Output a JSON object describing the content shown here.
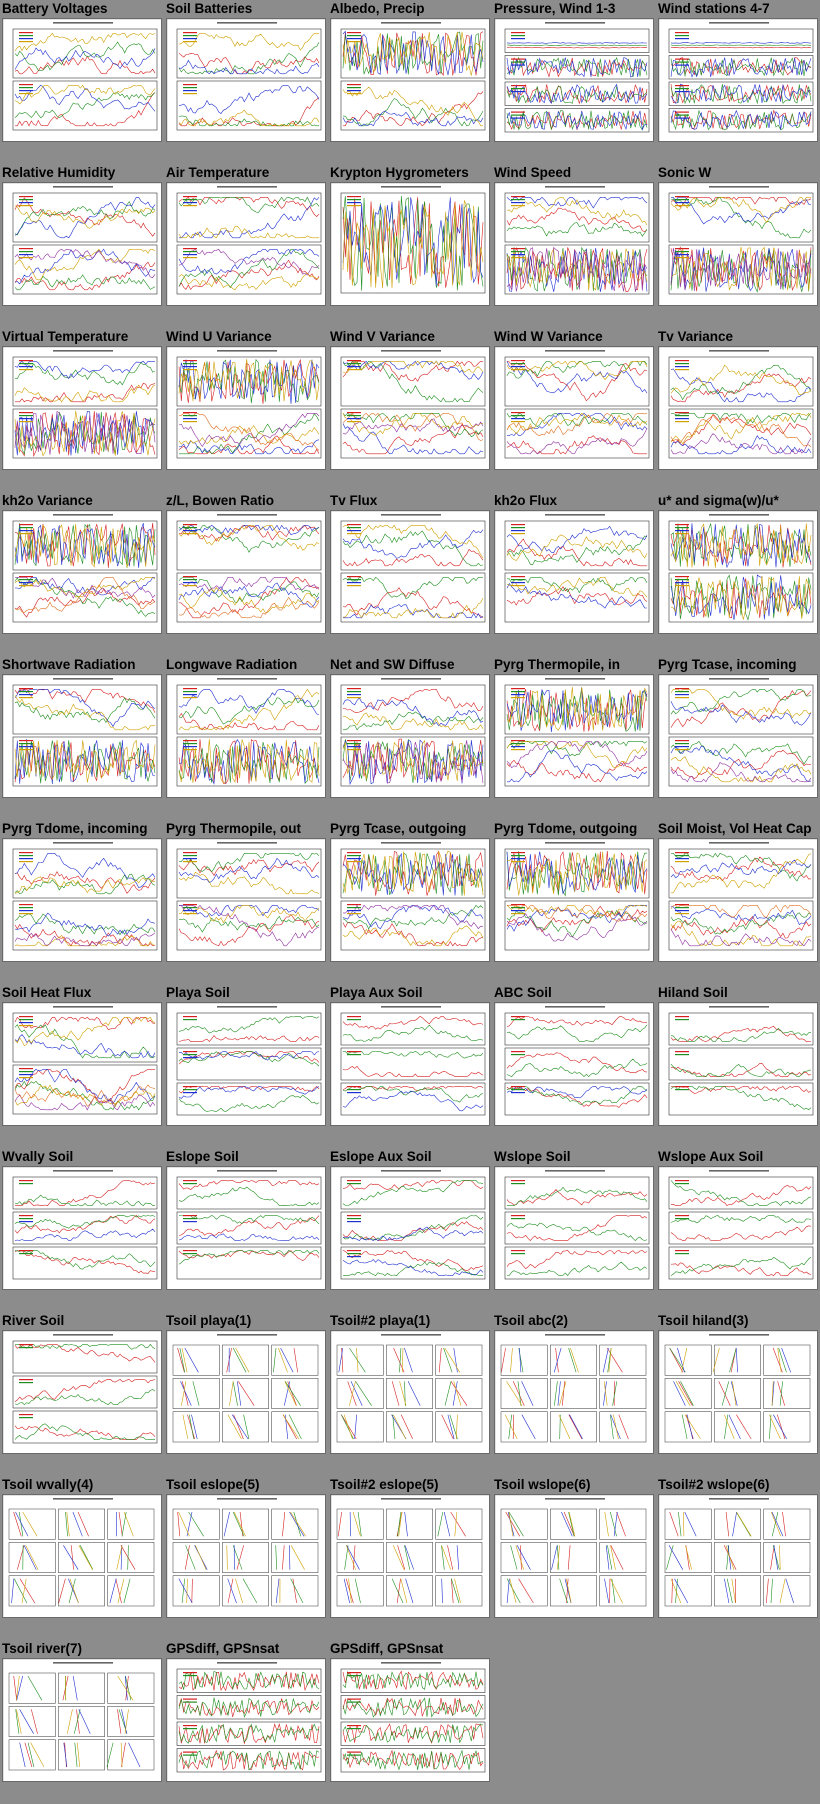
{
  "page": {
    "background": "#8c8c8c"
  },
  "plots": [
    {
      "title": "Battery Voltages",
      "kind": "ts2"
    },
    {
      "title": "Soil Batteries",
      "kind": "ts2"
    },
    {
      "title": "Albedo, Precip",
      "kind": "ts2"
    },
    {
      "title": "Pressure, Wind 1-3",
      "kind": "ts4"
    },
    {
      "title": "Wind stations 4-7",
      "kind": "ts4"
    },
    {
      "title": "Relative Humidity",
      "kind": "ts2"
    },
    {
      "title": "Air Temperature",
      "kind": "ts2"
    },
    {
      "title": "Krypton Hygrometers",
      "kind": "ts1"
    },
    {
      "title": "Wind Speed",
      "kind": "ts2"
    },
    {
      "title": "Sonic W",
      "kind": "ts2"
    },
    {
      "title": "Virtual Temperature",
      "kind": "ts2"
    },
    {
      "title": "Wind U Variance",
      "kind": "ts2"
    },
    {
      "title": "Wind V Variance",
      "kind": "ts2"
    },
    {
      "title": "Wind W Variance",
      "kind": "ts2"
    },
    {
      "title": "Tv Variance",
      "kind": "ts2"
    },
    {
      "title": "kh2o Variance",
      "kind": "ts2"
    },
    {
      "title": "z/L, Bowen Ratio",
      "kind": "ts2"
    },
    {
      "title": "Tv Flux",
      "kind": "ts2"
    },
    {
      "title": "kh2o Flux",
      "kind": "ts2"
    },
    {
      "title": "u* and sigma(w)/u*",
      "kind": "ts2"
    },
    {
      "title": "Shortwave Radiation",
      "kind": "ts2"
    },
    {
      "title": "Longwave Radiation",
      "kind": "ts2"
    },
    {
      "title": "Net and SW Diffuse",
      "kind": "ts2"
    },
    {
      "title": "Pyrg Thermopile, in",
      "kind": "ts2"
    },
    {
      "title": "Pyrg Tcase, incoming",
      "kind": "ts2"
    },
    {
      "title": "Pyrg Tdome, incoming",
      "kind": "ts2"
    },
    {
      "title": "Pyrg Thermopile, out",
      "kind": "ts2"
    },
    {
      "title": "Pyrg Tcase, outgoing",
      "kind": "ts2"
    },
    {
      "title": "Pyrg Tdome, outgoing",
      "kind": "ts2"
    },
    {
      "title": "Soil Moist, Vol Heat Cap",
      "kind": "ts2"
    },
    {
      "title": "Soil Heat Flux",
      "kind": "ts2"
    },
    {
      "title": "Playa Soil",
      "kind": "ts3"
    },
    {
      "title": "Playa Aux Soil",
      "kind": "ts3"
    },
    {
      "title": "ABC Soil",
      "kind": "ts3"
    },
    {
      "title": "Hiland Soil",
      "kind": "ts3"
    },
    {
      "title": "Wvally Soil",
      "kind": "ts3"
    },
    {
      "title": "Eslope Soil",
      "kind": "ts3"
    },
    {
      "title": "Eslope Aux Soil",
      "kind": "ts3"
    },
    {
      "title": "Wslope Soil",
      "kind": "ts3"
    },
    {
      "title": "Wslope Aux Soil",
      "kind": "ts3"
    },
    {
      "title": "River Soil",
      "kind": "ts3"
    },
    {
      "title": "Tsoil playa(1)",
      "kind": "prof"
    },
    {
      "title": "Tsoil#2 playa(1)",
      "kind": "prof"
    },
    {
      "title": "Tsoil abc(2)",
      "kind": "prof"
    },
    {
      "title": "Tsoil hiland(3)",
      "kind": "prof"
    },
    {
      "title": "Tsoil wvally(4)",
      "kind": "prof"
    },
    {
      "title": "Tsoil eslope(5)",
      "kind": "prof"
    },
    {
      "title": "Tsoil#2 eslope(5)",
      "kind": "prof"
    },
    {
      "title": "Tsoil wslope(6)",
      "kind": "prof"
    },
    {
      "title": "Tsoil#2 wslope(6)",
      "kind": "prof"
    },
    {
      "title": "Tsoil river(7)",
      "kind": "prof"
    },
    {
      "title": "GPSdiff, GPSnsat",
      "kind": "gps"
    },
    {
      "title": "GPSdiff, GPSnsat",
      "kind": "gps"
    }
  ],
  "line_colors": [
    "#d62020",
    "#1f8f1f",
    "#2030d0",
    "#d0a000",
    "#9030a0",
    "#e07020",
    "#30a0c0",
    "#88cc22"
  ]
}
